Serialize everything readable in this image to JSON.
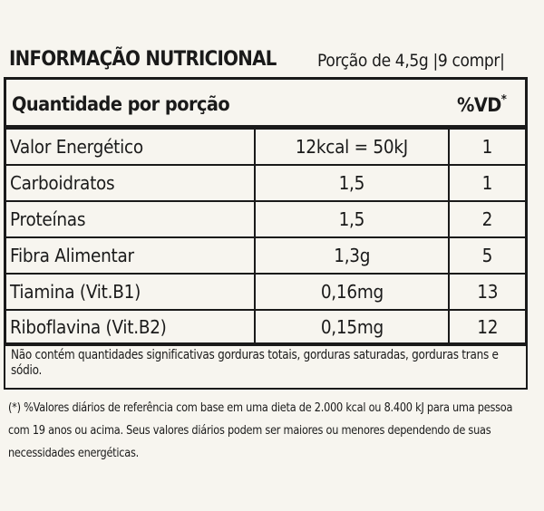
{
  "header": {
    "title": "INFORMAÇÃO NUTRICIONAL",
    "serving": "Porção de 4,5g |9 compr|"
  },
  "table": {
    "col_quantity_header": "Quantidade por porção",
    "col_vd_header": "%VD",
    "col_vd_asterisk": "*",
    "rows": [
      {
        "name": "Valor Energético",
        "amount": "12kcal = 50kJ",
        "vd": "1"
      },
      {
        "name": "Carboidratos",
        "amount": "1,5",
        "vd": "1"
      },
      {
        "name": "Proteínas",
        "amount": "1,5",
        "vd": "2"
      },
      {
        "name": "Fibra Alimentar",
        "amount": "1,3g",
        "vd": "5"
      },
      {
        "name": "Tiamina (Vit.B1)",
        "amount": "0,16mg",
        "vd": "13"
      },
      {
        "name": "Riboflavina (Vit.B2)",
        "amount": "0,15mg",
        "vd": "12"
      }
    ]
  },
  "note": "Não contém quantidades significativas gorduras totais, gorduras saturadas, gorduras trans e sódio.",
  "footnote": "(*) %Valores diários de referência com base em uma dieta de 2.000 kcal ou 8.400 kJ para uma pessoa com 19 anos ou acima. Seus valores diários podem ser maiores ou menores dependendo de suas necessidades energéticas."
}
